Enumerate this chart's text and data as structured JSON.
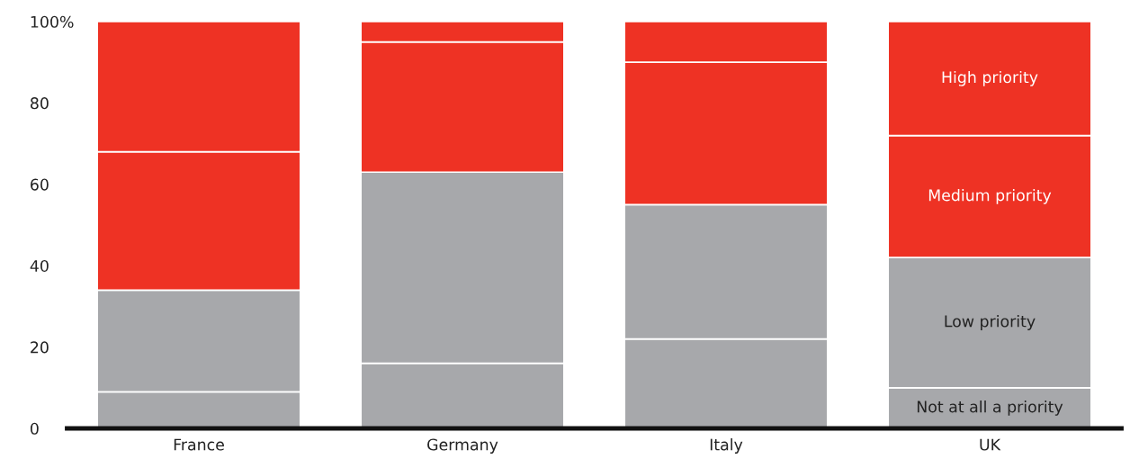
{
  "chart_data": {
    "type": "bar",
    "stacked": true,
    "categories": [
      "France",
      "Germany",
      "Italy",
      "UK"
    ],
    "series": [
      {
        "name": "Not at all a priority",
        "color": "#a7a8ab",
        "values": [
          9,
          16,
          22,
          10
        ]
      },
      {
        "name": "Low priority",
        "color": "#a7a8ab",
        "values": [
          25,
          47,
          33,
          32
        ]
      },
      {
        "name": "Medium priority",
        "color": "#ee3224",
        "values": [
          34,
          32,
          35,
          30
        ]
      },
      {
        "name": "High priority",
        "color": "#ee3224",
        "values": [
          32,
          5,
          10,
          28
        ]
      }
    ],
    "ylim": [
      0,
      100
    ],
    "yticks": [
      0,
      20,
      40,
      60,
      {
        "value": 100,
        "label": "100%"
      },
      80
    ],
    "grid": false,
    "legend": false
  }
}
